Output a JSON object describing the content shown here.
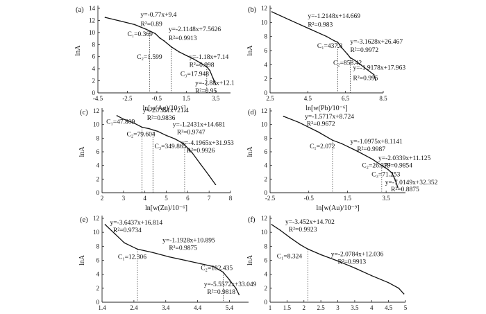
{
  "chart_data": [
    {
      "id": "a",
      "label": "(a)",
      "type": "line",
      "xlabel": "ln[w(Ag)/10⁻⁶]",
      "ylabel": "lnA",
      "xlim": [
        -4.5,
        4.5
      ],
      "ylim": [
        0,
        14
      ],
      "xticks": [
        "-4.5",
        "-2.5",
        "-0.5",
        "1.5",
        "3.5"
      ],
      "yticks": [
        "0",
        "2",
        "4",
        "6",
        "8",
        "10",
        "12",
        "14"
      ],
      "curve_x": [
        -4.0,
        -3.0,
        -2.0,
        -1.2,
        -0.6,
        -0.3,
        0.0,
        0.5,
        1.0,
        1.5,
        2.0,
        2.5,
        2.9,
        3.1,
        3.3,
        3.5
      ],
      "curve_y": [
        12.5,
        11.9,
        11.3,
        10.5,
        9.8,
        9.1,
        8.6,
        7.6,
        6.8,
        6.2,
        5.6,
        4.9,
        4.3,
        3.7,
        2.5,
        1.4
      ],
      "thresholds": [
        {
          "x": -0.997
        },
        {
          "x": 0.469
        },
        {
          "x": 2.888
        }
      ],
      "annotations": [
        {
          "type": "eq",
          "text": "y=-0.77x+9.4",
          "x": -1.6,
          "y": 12.6
        },
        {
          "type": "eq",
          "text": "R²=0.89",
          "x": -1.6,
          "y": 11.1
        },
        {
          "type": "c",
          "text": "C₁=0.369",
          "x": -2.5,
          "y": 9.4
        },
        {
          "type": "eq",
          "text": "y=-2.1148x+7.5626",
          "x": 0.3,
          "y": 10.2
        },
        {
          "type": "eq",
          "text": "R²=0.9913",
          "x": 0.3,
          "y": 8.7
        },
        {
          "type": "c",
          "text": "C₂=1.599",
          "x": -1.85,
          "y": 5.6
        },
        {
          "type": "eq",
          "text": "y=-1.18x+7.14",
          "x": 1.7,
          "y": 5.6
        },
        {
          "type": "eq",
          "text": "R²=0.998",
          "x": 1.7,
          "y": 4.3
        },
        {
          "type": "c",
          "text": "C₃=17.948",
          "x": 1.1,
          "y": 2.8
        },
        {
          "type": "eq",
          "text": "y=-2.88x+12.1",
          "x": 2.1,
          "y": 1.3
        },
        {
          "type": "eq",
          "text": "R²=0.95",
          "x": 2.1,
          "y": 0.0
        }
      ]
    },
    {
      "id": "b",
      "label": "(b)",
      "type": "line",
      "xlabel": "ln[w(Pb)/10⁻⁶]",
      "ylabel": "lnA",
      "xlim": [
        2.5,
        8.5
      ],
      "ylim": [
        0,
        12
      ],
      "xticks": [
        "2.5",
        "4.5",
        "6.5",
        "8.5"
      ],
      "yticks": [
        "0",
        "2",
        "4",
        "6",
        "8",
        "10",
        "12"
      ],
      "curve_x": [
        2.6,
        3.5,
        4.5,
        5.5,
        5.9,
        6.08,
        6.3,
        6.6,
        6.75,
        7.0,
        7.5,
        8.0,
        8.1
      ],
      "curve_y": [
        11.5,
        10.4,
        9.2,
        8.0,
        7.4,
        7.2,
        6.4,
        5.5,
        5.0,
        4.6,
        3.6,
        2.6,
        1.8
      ],
      "thresholds": [
        {
          "x": 6.082
        },
        {
          "x": 6.754
        }
      ],
      "annotations": [
        {
          "type": "eq",
          "text": "y=-1.2148x+14.669",
          "x": 4.5,
          "y": 10.6
        },
        {
          "type": "eq",
          "text": "R²=0.983",
          "x": 4.5,
          "y": 9.4
        },
        {
          "type": "c",
          "text": "C₁=437.8",
          "x": 5.0,
          "y": 6.4
        },
        {
          "type": "eq",
          "text": "y=-3.1628x+26.467",
          "x": 6.75,
          "y": 7.0
        },
        {
          "type": "eq",
          "text": "R²=0.9972",
          "x": 6.75,
          "y": 5.8
        },
        {
          "type": "c",
          "text": "C₂=858.42",
          "x": 5.85,
          "y": 4.0
        },
        {
          "type": "eq",
          "text": "y=-1.9178x+17.963",
          "x": 6.9,
          "y": 3.3
        },
        {
          "type": "eq",
          "text": "R²=0.995",
          "x": 6.9,
          "y": 1.8
        }
      ]
    },
    {
      "id": "c",
      "label": "(c)",
      "type": "line",
      "xlabel": "ln[w(Zn)/10⁻⁶]",
      "ylabel": "lnA",
      "xlim": [
        2,
        8
      ],
      "ylim": [
        0,
        12
      ],
      "xticks": [
        "2",
        "3",
        "4",
        "5",
        "6",
        "7",
        "8"
      ],
      "yticks": [
        "0",
        "2",
        "4",
        "6",
        "8",
        "10",
        "12"
      ],
      "curve_x": [
        2.7,
        3.0,
        3.5,
        3.87,
        4.2,
        4.6,
        5.0,
        5.4,
        5.8,
        6.2,
        6.6,
        7.0,
        7.3
      ],
      "curve_y": [
        11.3,
        10.8,
        10.2,
        9.6,
        9.4,
        9.0,
        8.4,
        7.9,
        7.2,
        5.9,
        4.2,
        2.5,
        1.2
      ],
      "thresholds": [
        {
          "x": 3.867
        },
        {
          "x": 4.377
        },
        {
          "x": 5.857
        }
      ],
      "annotations": [
        {
          "type": "eq",
          "text": "y=-2.7351x+21.4",
          "x": 3.9,
          "y": 11.8
        },
        {
          "type": "eq",
          "text": "R²=0.9836",
          "x": 4.1,
          "y": 10.7
        },
        {
          "type": "c",
          "text": "C₁=47.809",
          "x": 2.2,
          "y": 10.1
        },
        {
          "type": "eq",
          "text": "y=-1.2431x+14.681",
          "x": 5.3,
          "y": 9.7
        },
        {
          "type": "eq",
          "text": "R²=0.9747",
          "x": 5.5,
          "y": 8.6
        },
        {
          "type": "c",
          "text": "C₂=79.604",
          "x": 3.15,
          "y": 8.3
        },
        {
          "type": "eq",
          "text": "y=-4.1965x+31.953",
          "x": 5.7,
          "y": 7.0
        },
        {
          "type": "c",
          "text": "C₃=349.865",
          "x": 4.45,
          "y": 6.5
        },
        {
          "type": "eq",
          "text": "R²=0.9926",
          "x": 5.95,
          "y": 5.9
        }
      ]
    },
    {
      "id": "d",
      "label": "(d)",
      "type": "line",
      "xlabel": "ln[w(Au)/10⁻⁹]",
      "ylabel": "lnA",
      "xlim": [
        -2.5,
        4.5
      ],
      "ylim": [
        0,
        12
      ],
      "xticks": [
        "-2.5",
        "-0.5",
        "1.5",
        "3.5"
      ],
      "yticks": [
        "0",
        "2",
        "4",
        "6",
        "8",
        "10",
        "12"
      ],
      "curve_x": [
        -1.8,
        -1.0,
        0.0,
        0.73,
        1.2,
        2.0,
        2.8,
        3.27,
        3.6,
        3.8,
        3.95,
        4.1
      ],
      "curve_y": [
        11.2,
        10.3,
        8.9,
        7.7,
        7.2,
        6.1,
        4.9,
        4.0,
        3.4,
        2.9,
        2.0,
        0.8
      ],
      "thresholds": [
        {
          "x": 0.728
        },
        {
          "x": 3.272
        },
        {
          "x": 4.266
        }
      ],
      "annotations": [
        {
          "type": "eq",
          "text": "y=-1.5717x+8.724",
          "x": -0.7,
          "y": 10.9
        },
        {
          "type": "eq",
          "text": "R²=0.9672",
          "x": -0.6,
          "y": 9.8
        },
        {
          "type": "c",
          "text": "C₁=2.072",
          "x": -0.45,
          "y": 6.5
        },
        {
          "type": "eq",
          "text": "y=-1.0975x+8.1141",
          "x": 1.65,
          "y": 7.2
        },
        {
          "type": "eq",
          "text": "R²=0.9987",
          "x": 2.0,
          "y": 6.1
        },
        {
          "type": "eq",
          "text": "y=-2.0339x+11.125",
          "x": 3.1,
          "y": 4.8
        },
        {
          "type": "c",
          "text": "C₂=26.379",
          "x": 2.25,
          "y": 3.7
        },
        {
          "type": "eq",
          "text": "R²=0.9854",
          "x": 3.4,
          "y": 3.7
        },
        {
          "type": "c",
          "text": "C₃=71.253",
          "x": 2.75,
          "y": 2.4
        },
        {
          "type": "eq",
          "text": "y=-7.0149x+32.352",
          "x": 3.45,
          "y": 1.2
        },
        {
          "type": "eq",
          "text": "R²=0.8875",
          "x": 3.75,
          "y": 0.2
        }
      ]
    },
    {
      "id": "e",
      "label": "(e)",
      "type": "line",
      "xlabel": "ln[w(Sn)/10⁻⁶]",
      "ylabel": "lnA",
      "xlim": [
        1.4,
        6.0
      ],
      "ylim": [
        0,
        12
      ],
      "xticks": [
        "1.4",
        "2.4",
        "3.4",
        "4.4",
        "5.4"
      ],
      "yticks": [
        "0",
        "2",
        "4",
        "6",
        "8",
        "10",
        "12"
      ],
      "curve_x": [
        1.5,
        1.8,
        2.1,
        2.51,
        3.0,
        3.5,
        4.0,
        4.5,
        4.9,
        5.2,
        5.4,
        5.6,
        5.7
      ],
      "curve_y": [
        11.1,
        9.8,
        8.5,
        7.6,
        7.1,
        6.5,
        6.0,
        5.5,
        5.1,
        4.3,
        3.2,
        2.0,
        1.1
      ],
      "thresholds": [
        {
          "x": 2.51
        },
        {
          "x": 5.206
        }
      ],
      "annotations": [
        {
          "type": "eq",
          "text": "y=-3.6437x+16.814",
          "x": 1.65,
          "y": 11.1
        },
        {
          "type": "eq",
          "text": "R²=0.9734",
          "x": 1.75,
          "y": 10.0
        },
        {
          "type": "c",
          "text": "C₁=12.306",
          "x": 1.9,
          "y": 6.2
        },
        {
          "type": "eq",
          "text": "y=-1.1928x+10.895",
          "x": 3.3,
          "y": 8.6
        },
        {
          "type": "eq",
          "text": "R²=0.9875",
          "x": 3.5,
          "y": 7.5
        },
        {
          "type": "c",
          "text": "C₂=182.435",
          "x": 4.5,
          "y": 4.6
        },
        {
          "type": "eq",
          "text": "y=-5.5572x+33.049",
          "x": 4.6,
          "y": 2.3
        },
        {
          "type": "eq",
          "text": "R²=0.9818",
          "x": 4.7,
          "y": 1.2
        }
      ]
    },
    {
      "id": "f",
      "label": "(f)",
      "type": "line",
      "xlabel": "ln[w(W)/10⁻⁶]",
      "ylabel": "lnA",
      "xlim": [
        1,
        5
      ],
      "ylim": [
        0,
        12
      ],
      "xticks": [
        "1",
        "1.5",
        "2",
        "2.5",
        "3",
        "3.5",
        "4",
        "4.5",
        "5"
      ],
      "yticks": [
        "0",
        "2",
        "4",
        "6",
        "8",
        "10",
        "12"
      ],
      "curve_x": [
        1.05,
        1.3,
        1.6,
        1.9,
        2.12,
        2.5,
        3.0,
        3.5,
        4.0,
        4.5,
        4.8,
        4.95
      ],
      "curve_y": [
        11.1,
        10.3,
        9.2,
        8.2,
        7.6,
        6.8,
        5.9,
        4.9,
        3.8,
        2.8,
        2.0,
        1.2
      ],
      "thresholds": [
        {
          "x": 2.119
        }
      ],
      "annotations": [
        {
          "type": "eq",
          "text": "y=-3.452x+14.702",
          "x": 1.45,
          "y": 11.2
        },
        {
          "type": "eq",
          "text": "R²=0.9923",
          "x": 1.55,
          "y": 10.1
        },
        {
          "type": "c",
          "text": "C₁=8.324",
          "x": 1.2,
          "y": 6.3
        },
        {
          "type": "eq",
          "text": "y=-2.0784x+12.036",
          "x": 2.8,
          "y": 6.6
        },
        {
          "type": "eq",
          "text": "R²=0.9913",
          "x": 3.0,
          "y": 5.5
        }
      ]
    }
  ]
}
